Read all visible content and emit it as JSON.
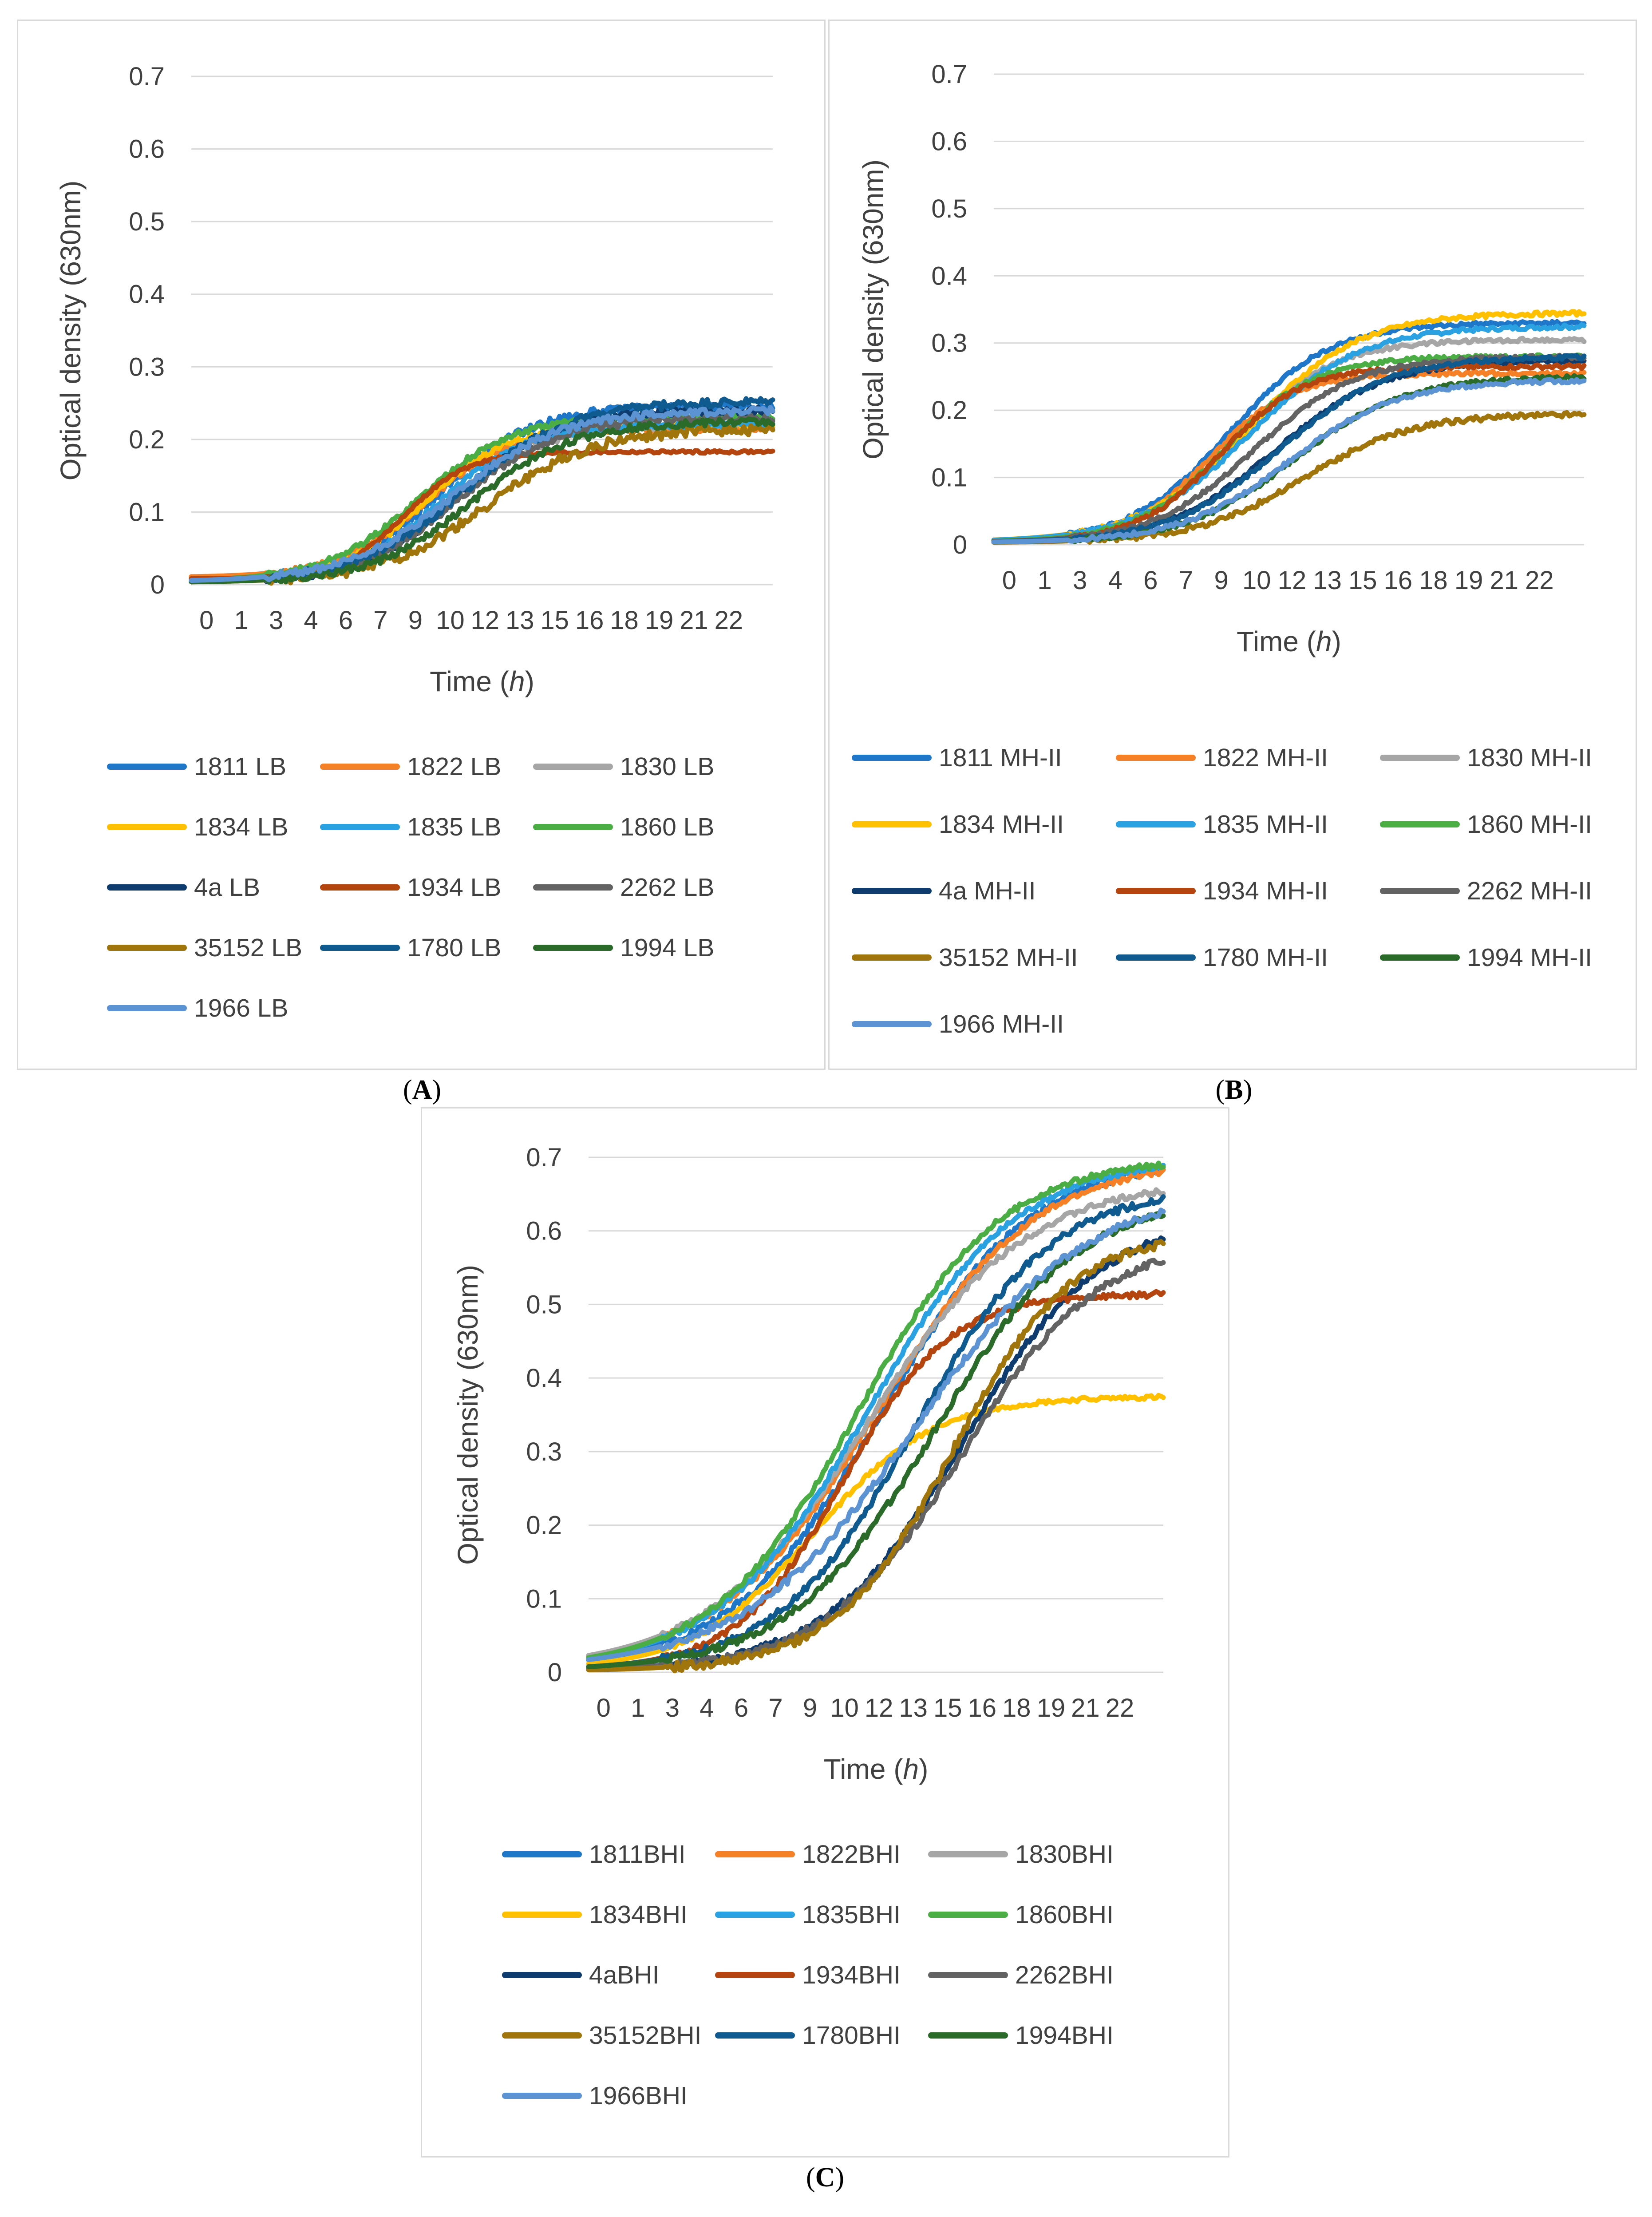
{
  "colors": [
    "#1F77C9",
    "#F58025",
    "#A6A6A6",
    "#FFC000",
    "#2AA1E0",
    "#4BAE45",
    "#0E3C6E",
    "#B5450E",
    "#636363",
    "#A0750C",
    "#0F5B8F",
    "#2A6B2A",
    "#5B93D3"
  ],
  "chart_data": [
    {
      "id": "A",
      "panel_label": "A",
      "type": "line",
      "xlabel_prefix": "Time (",
      "xlabel_var": "h",
      "xlabel_suffix": ")",
      "ylabel": "Optical density (630nm)",
      "ylim": [
        0,
        0.7
      ],
      "yticks": [
        "0",
        "0.1",
        "0.2",
        "0.3",
        "0.4",
        "0.5",
        "0.6",
        "0.7"
      ],
      "xlim": [
        0,
        24
      ],
      "xticks": [
        "0",
        "1",
        "3",
        "4",
        "6",
        "7",
        "9",
        "10",
        "12",
        "13",
        "15",
        "16",
        "18",
        "19",
        "21",
        "22"
      ],
      "grid": true,
      "legend_position": "bottom",
      "series": [
        {
          "name": "1811 LB",
          "midpoint": 10.2,
          "rate": 0.52,
          "max": 0.245,
          "start": 0.005,
          "noise": 0.006
        },
        {
          "name": "1822 LB",
          "midpoint": 9.6,
          "rate": 0.55,
          "max": 0.215,
          "start": 0.01,
          "noise": 0.004
        },
        {
          "name": "1830 LB",
          "midpoint": 10.6,
          "rate": 0.5,
          "max": 0.22,
          "start": 0.006,
          "noise": 0.004
        },
        {
          "name": "1834 LB",
          "midpoint": 9.6,
          "rate": 0.58,
          "max": 0.22,
          "start": 0.005,
          "noise": 0.004
        },
        {
          "name": "1835 LB",
          "midpoint": 10.2,
          "rate": 0.55,
          "max": 0.22,
          "start": 0.005,
          "noise": 0.004
        },
        {
          "name": "1860 LB",
          "midpoint": 9.4,
          "rate": 0.52,
          "max": 0.232,
          "start": 0.005,
          "noise": 0.004
        },
        {
          "name": "4a LB",
          "midpoint": 11.0,
          "rate": 0.5,
          "max": 0.24,
          "start": 0.003,
          "noise": 0.005
        },
        {
          "name": "1934 LB",
          "midpoint": 8.8,
          "rate": 0.75,
          "max": 0.183,
          "start": 0.008,
          "noise": 0.002
        },
        {
          "name": "2262 LB",
          "midpoint": 11.0,
          "rate": 0.48,
          "max": 0.23,
          "start": 0.003,
          "noise": 0.005
        },
        {
          "name": "35152 LB",
          "midpoint": 12.2,
          "rate": 0.45,
          "max": 0.215,
          "start": 0.003,
          "noise": 0.007
        },
        {
          "name": "1780 LB",
          "midpoint": 11.2,
          "rate": 0.45,
          "max": 0.252,
          "start": 0.003,
          "noise": 0.006
        },
        {
          "name": "1994 LB",
          "midpoint": 11.6,
          "rate": 0.48,
          "max": 0.225,
          "start": 0.003,
          "noise": 0.005
        },
        {
          "name": "1966 LB",
          "midpoint": 10.8,
          "rate": 0.45,
          "max": 0.24,
          "start": 0.004,
          "noise": 0.005
        }
      ]
    },
    {
      "id": "B",
      "panel_label": "B",
      "type": "line",
      "xlabel_prefix": "Time (",
      "xlabel_var": "h",
      "xlabel_suffix": ")",
      "ylabel": "Optical density (630nm)",
      "ylim": [
        0,
        0.7
      ],
      "yticks": [
        "0",
        "0.1",
        "0.2",
        "0.3",
        "0.4",
        "0.5",
        "0.6",
        "0.7"
      ],
      "xlim": [
        0,
        24
      ],
      "xticks": [
        "0",
        "1",
        "3",
        "4",
        "6",
        "7",
        "9",
        "10",
        "12",
        "13",
        "15",
        "16",
        "18",
        "19",
        "21",
        "22"
      ],
      "grid": true,
      "legend_position": "bottom",
      "series": [
        {
          "name": "1811 MH-II",
          "midpoint": 9.6,
          "rate": 0.5,
          "max": 0.33,
          "start": 0.004,
          "noise": 0.003
        },
        {
          "name": "1822 MH-II",
          "midpoint": 8.8,
          "rate": 0.6,
          "max": 0.255,
          "start": 0.004,
          "noise": 0.003
        },
        {
          "name": "1830 MH-II",
          "midpoint": 9.8,
          "rate": 0.5,
          "max": 0.305,
          "start": 0.004,
          "noise": 0.003
        },
        {
          "name": "1834 MH-II",
          "midpoint": 10.4,
          "rate": 0.45,
          "max": 0.345,
          "start": 0.004,
          "noise": 0.003
        },
        {
          "name": "1835 MH-II",
          "midpoint": 10.4,
          "rate": 0.45,
          "max": 0.325,
          "start": 0.004,
          "noise": 0.003
        },
        {
          "name": "1860 MH-II",
          "midpoint": 9.4,
          "rate": 0.55,
          "max": 0.28,
          "start": 0.004,
          "noise": 0.003
        },
        {
          "name": "4a MH-II",
          "midpoint": 11.4,
          "rate": 0.45,
          "max": 0.275,
          "start": 0.003,
          "noise": 0.003
        },
        {
          "name": "1934 MH-II",
          "midpoint": 9.2,
          "rate": 0.6,
          "max": 0.265,
          "start": 0.004,
          "noise": 0.003
        },
        {
          "name": "2262 MH-II",
          "midpoint": 10.6,
          "rate": 0.48,
          "max": 0.28,
          "start": 0.003,
          "noise": 0.003
        },
        {
          "name": "35152 MH-II",
          "midpoint": 12.6,
          "rate": 0.45,
          "max": 0.195,
          "start": 0.003,
          "noise": 0.004
        },
        {
          "name": "1780 MH-II",
          "midpoint": 11.6,
          "rate": 0.45,
          "max": 0.28,
          "start": 0.003,
          "noise": 0.003
        },
        {
          "name": "1994 MH-II",
          "midpoint": 12.2,
          "rate": 0.45,
          "max": 0.25,
          "start": 0.003,
          "noise": 0.003
        },
        {
          "name": "1966 MH-II",
          "midpoint": 12.0,
          "rate": 0.45,
          "max": 0.245,
          "start": 0.003,
          "noise": 0.003
        }
      ]
    },
    {
      "id": "C",
      "panel_label": "C",
      "type": "line",
      "xlabel_prefix": "Time (",
      "xlabel_var": "h",
      "xlabel_suffix": ")",
      "ylabel": "Optical density (630nm)",
      "ylim": [
        0,
        0.7
      ],
      "yticks": [
        "0",
        "0.1",
        "0.2",
        "0.3",
        "0.4",
        "0.5",
        "0.6",
        "0.7"
      ],
      "xlim": [
        0,
        24
      ],
      "xticks": [
        "0",
        "1",
        "3",
        "4",
        "6",
        "7",
        "9",
        "10",
        "12",
        "13",
        "15",
        "16",
        "18",
        "19",
        "21",
        "22"
      ],
      "grid": true,
      "legend_position": "bottom",
      "series": [
        {
          "name": "1811BHI",
          "midpoint": 12.2,
          "rate": 0.32,
          "max": 0.7,
          "start": 0.003,
          "noise": 0.005
        },
        {
          "name": "1822BHI",
          "midpoint": 12.0,
          "rate": 0.3,
          "max": 0.7,
          "start": 0.003,
          "noise": 0.004
        },
        {
          "name": "1830BHI",
          "midpoint": 11.6,
          "rate": 0.3,
          "max": 0.67,
          "start": 0.003,
          "noise": 0.004
        },
        {
          "name": "1834BHI",
          "midpoint": 9.4,
          "rate": 0.4,
          "max": 0.375,
          "start": 0.003,
          "noise": 0.003
        },
        {
          "name": "1835BHI",
          "midpoint": 11.6,
          "rate": 0.32,
          "max": 0.7,
          "start": 0.003,
          "noise": 0.004
        },
        {
          "name": "1860BHI",
          "midpoint": 11.2,
          "rate": 0.33,
          "max": 0.7,
          "start": 0.003,
          "noise": 0.004
        },
        {
          "name": "4aBHI",
          "midpoint": 15.6,
          "rate": 0.35,
          "max": 0.62,
          "start": 0.002,
          "noise": 0.005
        },
        {
          "name": "1934BHI",
          "midpoint": 10.6,
          "rate": 0.45,
          "max": 0.515,
          "start": 0.003,
          "noise": 0.004
        },
        {
          "name": "2262BHI",
          "midpoint": 15.6,
          "rate": 0.35,
          "max": 0.59,
          "start": 0.002,
          "noise": 0.005
        },
        {
          "name": "35152BHI",
          "midpoint": 15.2,
          "rate": 0.4,
          "max": 0.6,
          "start": 0.002,
          "noise": 0.006
        },
        {
          "name": "1780BHI",
          "midpoint": 13.6,
          "rate": 0.35,
          "max": 0.66,
          "start": 0.002,
          "noise": 0.005
        },
        {
          "name": "1994BHI",
          "midpoint": 14.4,
          "rate": 0.33,
          "max": 0.65,
          "start": 0.002,
          "noise": 0.005
        },
        {
          "name": "1966BHI",
          "midpoint": 13.6,
          "rate": 0.28,
          "max": 0.66,
          "start": 0.003,
          "noise": 0.005
        }
      ]
    }
  ]
}
